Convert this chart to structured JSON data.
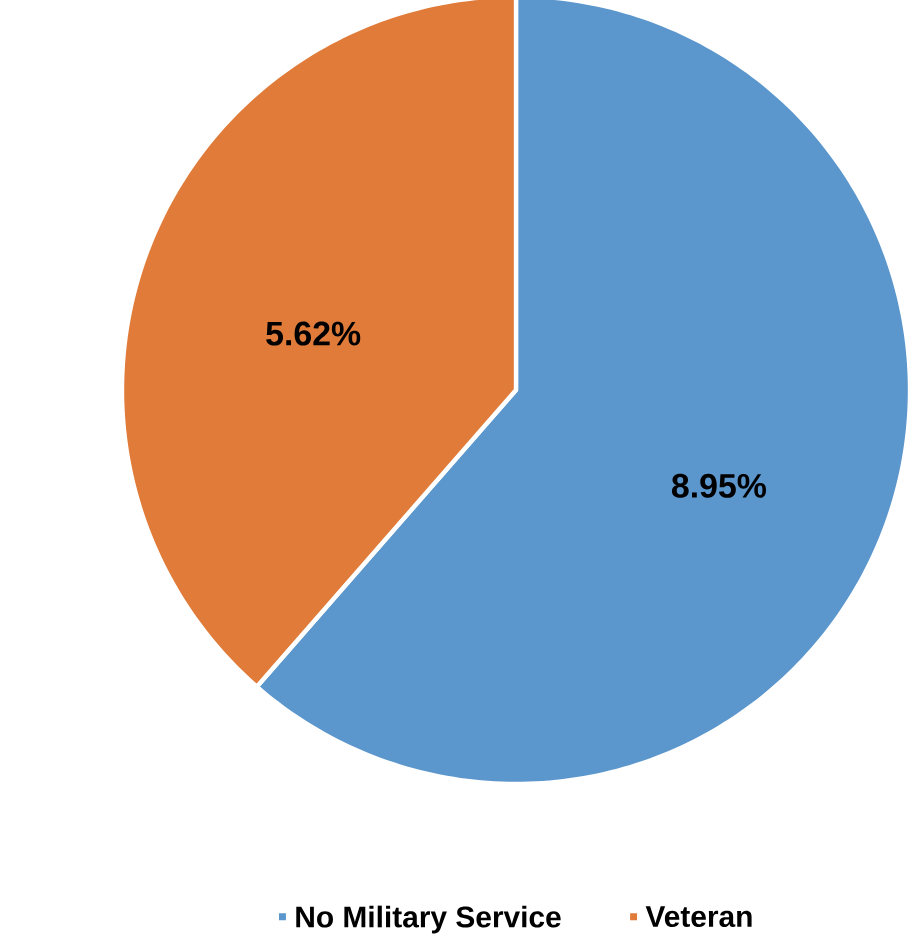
{
  "chart_data": {
    "type": "pie",
    "categories": [
      "No Military Service",
      "Veteran"
    ],
    "values": [
      8.95,
      5.62
    ],
    "value_labels": [
      "8.95%",
      "5.62%"
    ],
    "colors": [
      "#5b96cc",
      "#e07b39"
    ],
    "legend": "bottom"
  }
}
